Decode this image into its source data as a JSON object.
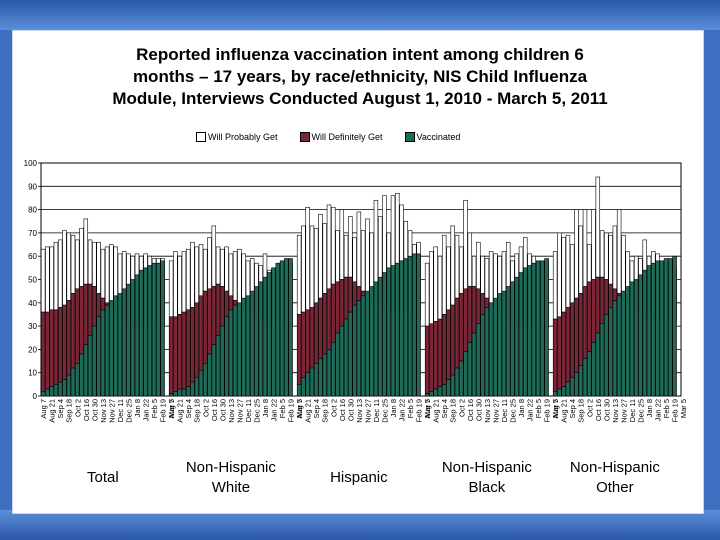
{
  "chart_data": {
    "type": "bar",
    "title": "Reported influenza vaccination intent among children 6 months – 17 years, by race/ethnicity, NIS Child Influenza Module, Interviews Conducted August 1, 2010 - March 5, 2011",
    "title_lines": [
      "Reported influenza vaccination intent among children 6",
      "months – 17 years, by race/ethnicity, NIS Child Influenza",
      "Module, Interviews Conducted August 1, 2010 - March 5, 2011"
    ],
    "stacked": true,
    "ylim": [
      0,
      100
    ],
    "yticks": [
      0,
      10,
      20,
      30,
      40,
      50,
      60,
      70,
      80,
      90,
      100
    ],
    "legend": [
      "Will Probably Get",
      "Will Definitely Get",
      "Vaccinated"
    ],
    "colors": {
      "vaccinated": "#1f6b5a",
      "definitely": "#7a2637",
      "probably": "#ffffff",
      "outline": "#000000"
    },
    "tick_labels": [
      "Aug 7",
      "Aug 21",
      "Sep 4",
      "Sep 18",
      "Oct 2",
      "Oct 16",
      "Oct 30",
      "Nov 13",
      "Nov 27",
      "Dec 11",
      "Dec 25",
      "Jan 8",
      "Jan 22",
      "Feb 5",
      "Feb 19",
      "Mar 5"
    ],
    "groups": [
      {
        "name": "Total",
        "label_lines": [
          "Total"
        ],
        "vaccinated": [
          2,
          3,
          4,
          5,
          6,
          7,
          9,
          12,
          14,
          18,
          22,
          26,
          30,
          34,
          37,
          39,
          41,
          43,
          44,
          46,
          48,
          50,
          52,
          54,
          55,
          56,
          57,
          57,
          58
        ],
        "definitely": [
          36,
          36,
          37,
          37,
          38,
          39,
          41,
          44,
          46,
          47,
          48,
          48,
          47,
          44,
          42,
          40,
          38,
          36,
          34,
          33,
          32,
          31,
          30,
          30,
          30,
          30,
          31,
          30,
          30
        ],
        "probably": [
          63,
          64,
          64,
          66,
          67,
          71,
          70,
          69,
          67,
          72,
          76,
          67,
          66,
          66,
          63,
          64,
          65,
          64,
          61,
          62,
          61,
          60,
          61,
          60,
          61,
          60,
          59,
          59,
          59
        ]
      },
      {
        "name": "Non-Hispanic White",
        "label_lines": [
          "Non-Hispanic",
          "White"
        ],
        "vaccinated": [
          1,
          2,
          3,
          3,
          4,
          6,
          8,
          11,
          14,
          18,
          22,
          26,
          30,
          34,
          37,
          39,
          40,
          42,
          43,
          45,
          47,
          49,
          51,
          53,
          55,
          57,
          58,
          59,
          59
        ],
        "definitely": [
          34,
          34,
          35,
          36,
          37,
          38,
          40,
          43,
          45,
          46,
          47,
          48,
          47,
          45,
          43,
          41,
          39,
          37,
          36,
          35,
          34,
          33,
          32,
          31,
          31,
          31,
          31,
          30,
          30
        ],
        "probably": [
          58,
          62,
          60,
          62,
          63,
          66,
          64,
          65,
          63,
          68,
          73,
          64,
          63,
          64,
          61,
          62,
          63,
          61,
          58,
          59,
          57,
          56,
          61,
          54,
          55,
          56,
          57,
          56,
          57
        ]
      },
      {
        "name": "Hispanic",
        "label_lines": [
          "Hispanic"
        ],
        "vaccinated": [
          5,
          8,
          10,
          12,
          14,
          16,
          18,
          20,
          23,
          27,
          30,
          33,
          36,
          39,
          41,
          43,
          45,
          47,
          49,
          51,
          53,
          55,
          56,
          57,
          58,
          59,
          60,
          61,
          61
        ],
        "definitely": [
          35,
          36,
          37,
          38,
          40,
          42,
          44,
          46,
          48,
          49,
          50,
          51,
          51,
          49,
          47,
          45,
          43,
          41,
          40,
          39,
          38,
          37,
          36,
          35,
          35,
          35,
          34,
          33,
          33
        ],
        "probably": [
          69,
          73,
          81,
          73,
          72,
          78,
          74,
          82,
          81,
          71,
          80,
          69,
          77,
          68,
          79,
          71,
          76,
          70,
          84,
          77,
          86,
          70,
          86,
          87,
          82,
          75,
          71,
          65,
          66
        ]
      },
      {
        "name": "Non-Hispanic Black",
        "label_lines": [
          "Non-Hispanic",
          "Black"
        ],
        "vaccinated": [
          1,
          2,
          3,
          4,
          5,
          7,
          9,
          12,
          15,
          19,
          23,
          27,
          31,
          35,
          38,
          40,
          42,
          44,
          45,
          47,
          49,
          51,
          53,
          55,
          56,
          57,
          58,
          58,
          59
        ],
        "definitely": [
          30,
          31,
          32,
          33,
          35,
          37,
          39,
          42,
          44,
          46,
          47,
          47,
          46,
          44,
          42,
          40,
          38,
          36,
          34,
          33,
          32,
          31,
          30,
          30,
          30,
          30,
          30,
          29,
          29
        ],
        "probably": [
          57,
          62,
          64,
          60,
          69,
          64,
          73,
          69,
          64,
          84,
          70,
          60,
          66,
          60,
          59,
          62,
          61,
          60,
          62,
          66,
          58,
          61,
          64,
          68,
          61,
          60,
          58,
          57,
          58
        ]
      },
      {
        "name": "Non-Hispanic Other",
        "label_lines": [
          "Non-Hispanic",
          "Other"
        ],
        "vaccinated": [
          2,
          3,
          4,
          6,
          8,
          10,
          13,
          16,
          19,
          23,
          27,
          31,
          35,
          38,
          41,
          43,
          45,
          47,
          49,
          50,
          52,
          54,
          56,
          57,
          58,
          58,
          59,
          59,
          60
        ],
        "definitely": [
          33,
          34,
          36,
          38,
          40,
          42,
          44,
          47,
          49,
          50,
          51,
          51,
          50,
          48,
          46,
          44,
          42,
          40,
          38,
          37,
          36,
          35,
          34,
          33,
          33,
          33,
          32,
          32,
          32
        ],
        "probably": [
          62,
          70,
          68,
          69,
          65,
          80,
          73,
          80,
          65,
          80,
          94,
          71,
          70,
          69,
          73,
          80,
          69,
          62,
          58,
          60,
          59,
          67,
          60,
          62,
          61,
          58,
          55,
          54,
          55
        ]
      }
    ]
  }
}
